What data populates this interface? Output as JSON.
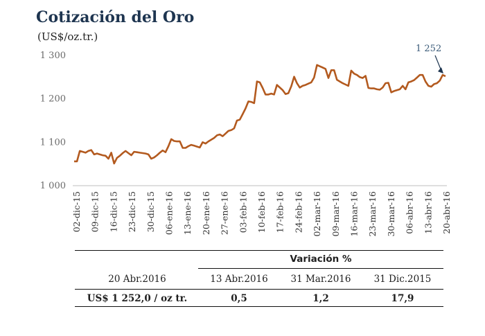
{
  "title": "Cotización del Oro",
  "subtitle": "(US$/oz.tr.)",
  "annotation": "1 252",
  "colors": {
    "line": "#B35A1F",
    "title": "#1E3550",
    "axis": "#BFBFBF"
  },
  "chart_data": {
    "type": "line",
    "title": "Cotización del Oro",
    "ylabel": "(US$/oz.tr.)",
    "ylim": [
      1000,
      1300
    ],
    "yticks": [
      1000,
      1100,
      1200,
      1300
    ],
    "ytick_labels": [
      "1 000",
      "1 100",
      "1 200",
      "1 300"
    ],
    "grid": false,
    "xtick_labels": [
      "02-dic-15",
      "09-dic-15",
      "16-dic-15",
      "23-dic-15",
      "30-dic-15",
      "06-ene-16",
      "13-ene-16",
      "20-ene-16",
      "27-ene-16",
      "03-feb-16",
      "10-feb-16",
      "17-feb-16",
      "24-feb-16",
      "02-mar-16",
      "09-mar-16",
      "16-mar-16",
      "23-mar-16",
      "30-mar-16",
      "06-abr-16",
      "13-abr-16",
      "20-abr-16"
    ],
    "series": [
      {
        "values": [
          1056,
          1056,
          1080,
          1078,
          1076,
          1080,
          1082,
          1072,
          1074,
          1072,
          1070,
          1069,
          1062,
          1076,
          1051,
          1064,
          1069,
          1075,
          1080,
          1075,
          1070,
          1078,
          1077,
          1076,
          1075,
          1074,
          1072,
          1062,
          1065,
          1070,
          1076,
          1081,
          1077,
          1091,
          1107,
          1103,
          1102,
          1102,
          1087,
          1087,
          1091,
          1094,
          1092,
          1090,
          1088,
          1100,
          1097,
          1102,
          1106,
          1110,
          1116,
          1118,
          1114,
          1120,
          1126,
          1128,
          1132,
          1150,
          1152,
          1165,
          1178,
          1194,
          1193,
          1190,
          1240,
          1238,
          1225,
          1210,
          1210,
          1212,
          1210,
          1232,
          1226,
          1220,
          1211,
          1213,
          1229,
          1251,
          1236,
          1226,
          1230,
          1232,
          1235,
          1238,
          1249,
          1278,
          1275,
          1272,
          1269,
          1248,
          1266,
          1266,
          1244,
          1240,
          1236,
          1233,
          1230,
          1265,
          1258,
          1255,
          1250,
          1248,
          1253,
          1225,
          1224,
          1224,
          1222,
          1221,
          1226,
          1236,
          1237,
          1215,
          1218,
          1220,
          1222,
          1230,
          1222,
          1238,
          1240,
          1243,
          1249,
          1255,
          1255,
          1240,
          1230,
          1228,
          1234,
          1236,
          1242,
          1255,
          1252
        ]
      }
    ]
  },
  "table": {
    "variation_header": "Variación %",
    "current_date": "20 Abr.2016",
    "dates": [
      "13 Abr.2016",
      "31 Mar.2016",
      "31 Dic.2015"
    ],
    "current_value": "US$ 1 252,0 / oz tr.",
    "variations": [
      "0,5",
      "1,2",
      "17,9"
    ]
  }
}
